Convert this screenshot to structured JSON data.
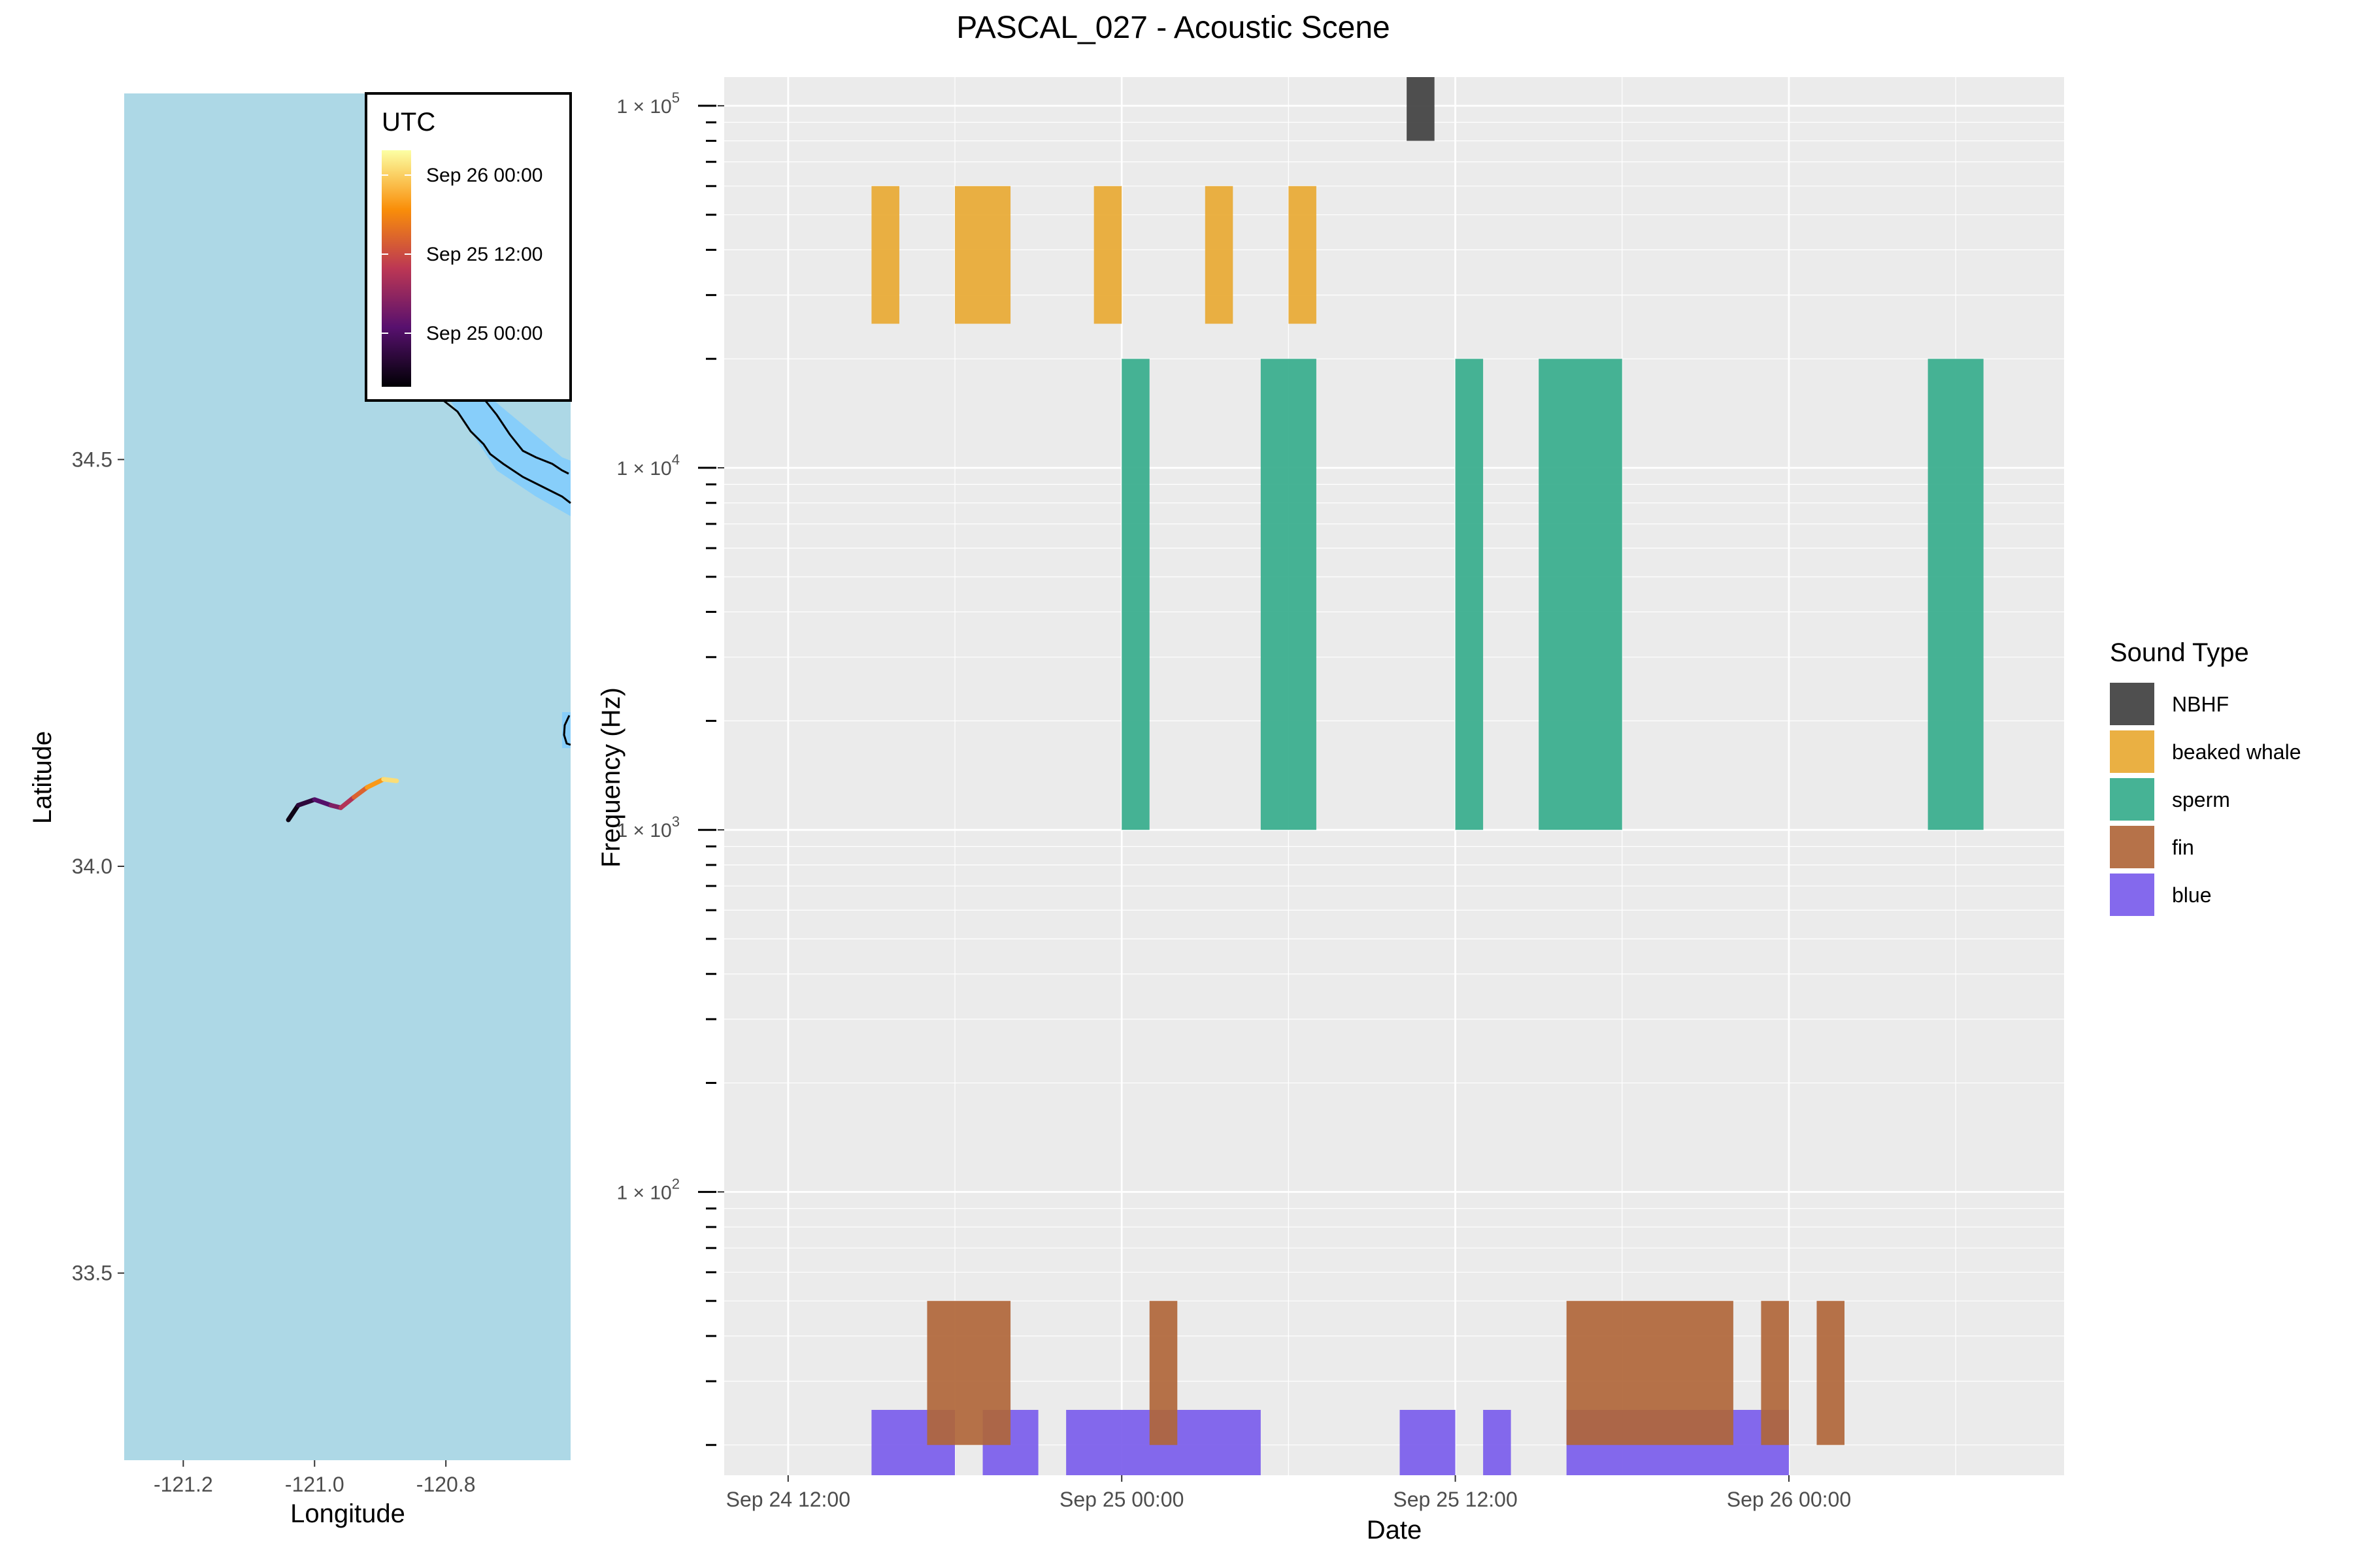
{
  "title": "PASCAL_027 - Acoustic Scene",
  "map": {
    "xlabel": "Longitude",
    "ylabel": "Latitude",
    "x_ticks": [
      "-121.2",
      "-121.0",
      "-120.8"
    ],
    "y_ticks": [
      "34.5",
      "34.0",
      "33.5"
    ],
    "x_tick_values": [
      -121.2,
      -121.0,
      -120.8
    ],
    "y_tick_values": [
      34.5,
      34.0,
      33.5
    ],
    "xlim": [
      -121.29,
      -120.61
    ],
    "ylim": [
      33.27,
      34.95
    ],
    "ocean_color": "#add8e6",
    "shelf_color": "#87cefa",
    "track": [
      {
        "lon": -121.04,
        "lat": 34.057,
        "t": 0.0
      },
      {
        "lon": -121.025,
        "lat": 34.075,
        "t": 0.08
      },
      {
        "lon": -121.0,
        "lat": 34.082,
        "t": 0.18
      },
      {
        "lon": -120.975,
        "lat": 34.075,
        "t": 0.3
      },
      {
        "lon": -120.96,
        "lat": 34.072,
        "t": 0.4
      },
      {
        "lon": -120.94,
        "lat": 34.085,
        "t": 0.55
      },
      {
        "lon": -120.92,
        "lat": 34.097,
        "t": 0.7
      },
      {
        "lon": -120.895,
        "lat": 34.107,
        "t": 0.85
      },
      {
        "lon": -120.875,
        "lat": 34.105,
        "t": 1.0
      }
    ],
    "colorbar": {
      "title": "UTC",
      "labels": [
        "Sep 26 00:00",
        "Sep 25 12:00",
        "Sep 25 00:00"
      ],
      "colors": [
        "#fcffa4",
        "#f98e09",
        "#bc3754",
        "#57106e",
        "#000004"
      ]
    }
  },
  "chart_data": {
    "type": "bar",
    "subtype": "time-frequency rectangles",
    "title": "PASCAL_027 - Acoustic Scene",
    "xlabel": "Date",
    "ylabel": "Frequency (Hz)",
    "y_scale": "log10",
    "x_ticks": [
      "Sep 24 12:00",
      "Sep 25 00:00",
      "Sep 25 12:00",
      "Sep 26 00:00"
    ],
    "x_tick_hours": [
      12,
      24,
      36,
      48
    ],
    "x_unit": "hours since Sep 24 00:00 UTC",
    "xlim": [
      9.7,
      57.9
    ],
    "ylim": [
      16.5,
      120000
    ],
    "y_ticks": [
      {
        "base": "1 × 10",
        "exp": "2",
        "value": 100
      },
      {
        "base": "1 × 10",
        "exp": "3",
        "value": 1000
      },
      {
        "base": "1 × 10",
        "exp": "4",
        "value": 10000
      },
      {
        "base": "1 × 10",
        "exp": "5",
        "value": 100000
      }
    ],
    "grid": true,
    "panel_bg": "#ebebeb",
    "legend": {
      "title": "Sound Type",
      "placement": "right"
    },
    "series": [
      {
        "name": "NBHF",
        "color": "#404040",
        "events": [
          {
            "start": 34.25,
            "end": 35.25,
            "fmin": 80000,
            "fmax": 120000
          }
        ]
      },
      {
        "name": "beaked whale",
        "color": "#e8a933",
        "events": [
          {
            "start": 15.0,
            "end": 16.0,
            "fmin": 25000,
            "fmax": 60000
          },
          {
            "start": 18.0,
            "end": 20.0,
            "fmin": 25000,
            "fmax": 60000
          },
          {
            "start": 23.0,
            "end": 24.0,
            "fmin": 25000,
            "fmax": 60000
          },
          {
            "start": 27.0,
            "end": 28.0,
            "fmin": 25000,
            "fmax": 60000
          },
          {
            "start": 30.0,
            "end": 31.0,
            "fmin": 25000,
            "fmax": 60000
          }
        ]
      },
      {
        "name": "sperm",
        "color": "#36ac8c",
        "events": [
          {
            "start": 24.0,
            "end": 25.0,
            "fmin": 1000,
            "fmax": 20000
          },
          {
            "start": 29.0,
            "end": 31.0,
            "fmin": 1000,
            "fmax": 20000
          },
          {
            "start": 36.0,
            "end": 37.0,
            "fmin": 1000,
            "fmax": 20000
          },
          {
            "start": 39.0,
            "end": 42.0,
            "fmin": 1000,
            "fmax": 20000
          },
          {
            "start": 53.0,
            "end": 55.0,
            "fmin": 1000,
            "fmax": 20000
          }
        ]
      },
      {
        "name": "fin",
        "color": "#b0663a",
        "events": [
          {
            "start": 17.0,
            "end": 20.0,
            "fmin": 20,
            "fmax": 50
          },
          {
            "start": 25.0,
            "end": 26.0,
            "fmin": 20,
            "fmax": 50
          },
          {
            "start": 40.0,
            "end": 46.0,
            "fmin": 20,
            "fmax": 50
          },
          {
            "start": 47.0,
            "end": 48.0,
            "fmin": 20,
            "fmax": 50
          },
          {
            "start": 49.0,
            "end": 50.0,
            "fmin": 20,
            "fmax": 50
          }
        ]
      },
      {
        "name": "blue",
        "color": "#7a5cec",
        "events": [
          {
            "start": 15.0,
            "end": 18.0,
            "fmin": 16.5,
            "fmax": 25
          },
          {
            "start": 19.0,
            "end": 21.0,
            "fmin": 16.5,
            "fmax": 25
          },
          {
            "start": 22.0,
            "end": 29.0,
            "fmin": 16.5,
            "fmax": 25
          },
          {
            "start": 34.0,
            "end": 36.0,
            "fmin": 16.5,
            "fmax": 25
          },
          {
            "start": 37.0,
            "end": 38.0,
            "fmin": 16.5,
            "fmax": 25
          },
          {
            "start": 40.0,
            "end": 48.0,
            "fmin": 16.5,
            "fmax": 25
          }
        ]
      }
    ]
  }
}
